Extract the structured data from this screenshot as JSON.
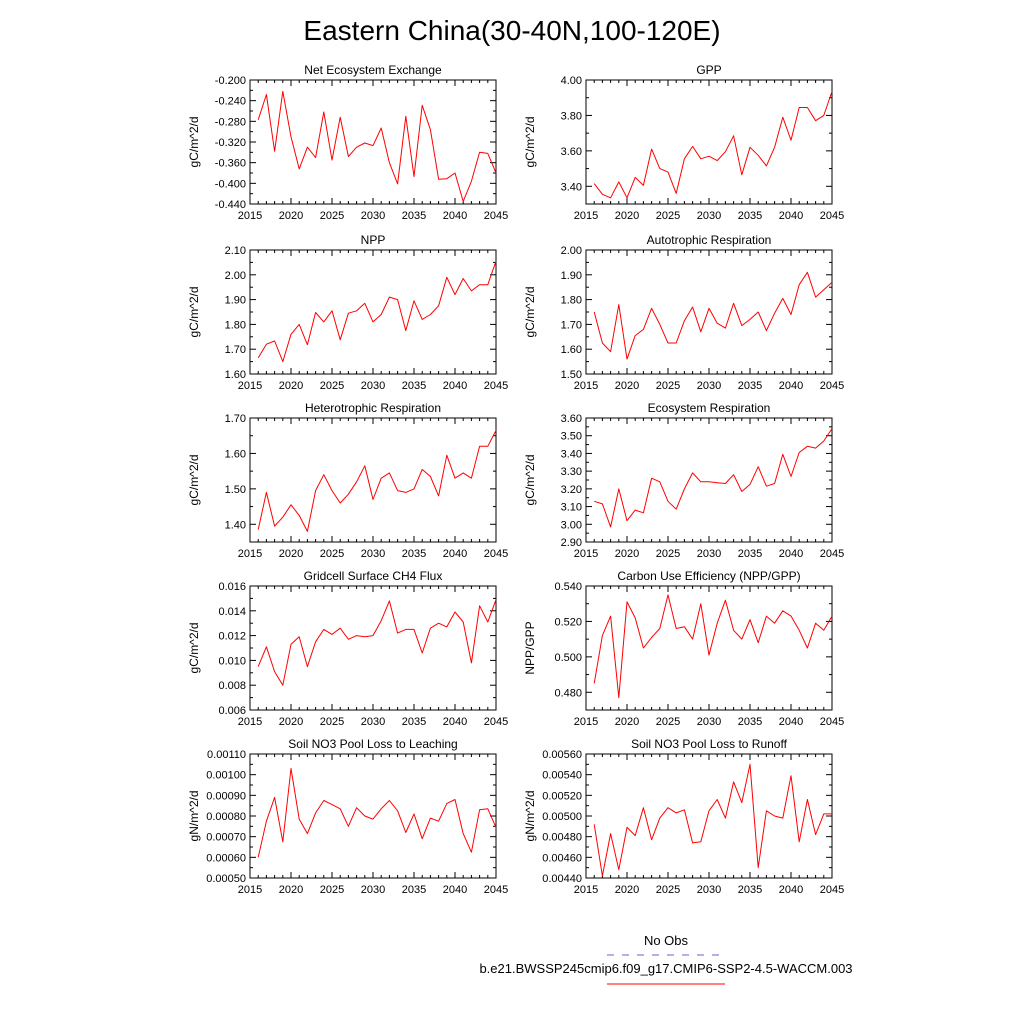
{
  "figure": {
    "title": "Eastern China(30-40N,100-120E)",
    "legend": {
      "obs_label": "No Obs",
      "obs_color": "#6666cc",
      "model_label": "b.e21.BWSSP245cmip6.f09_g17.CMIP6-SSP2-4.5-WACCM.003",
      "model_color": "#ff0000"
    }
  },
  "chart_data": [
    {
      "type": "line",
      "title": "Net Ecosystem Exchange",
      "xlabel": "",
      "ylabel": "gC/m^2/d",
      "xlim": [
        2015,
        2045
      ],
      "ylim": [
        -0.44,
        -0.2
      ],
      "xticks": [
        2015,
        2020,
        2025,
        2030,
        2035,
        2040,
        2045
      ],
      "yticks": [
        -0.44,
        -0.4,
        -0.36,
        -0.32,
        -0.28,
        -0.24,
        -0.2
      ],
      "ytick_decimals": 3,
      "x": [
        2016,
        2017,
        2018,
        2019,
        2020,
        2021,
        2022,
        2023,
        2024,
        2025,
        2026,
        2027,
        2028,
        2029,
        2030,
        2031,
        2032,
        2033,
        2034,
        2035,
        2036,
        2037,
        2038,
        2039,
        2040,
        2041,
        2042,
        2043,
        2044,
        2045
      ],
      "series": [
        {
          "values": [
            -0.277,
            -0.228,
            -0.338,
            -0.222,
            -0.31,
            -0.372,
            -0.33,
            -0.35,
            -0.262,
            -0.355,
            -0.272,
            -0.348,
            -0.33,
            -0.322,
            -0.327,
            -0.293,
            -0.36,
            -0.401,
            -0.27,
            -0.387,
            -0.249,
            -0.296,
            -0.392,
            -0.391,
            -0.38,
            -0.435,
            -0.396,
            -0.34,
            -0.342,
            -0.38
          ]
        }
      ]
    },
    {
      "type": "line",
      "title": "GPP",
      "xlabel": "",
      "ylabel": "gC/m^2/d",
      "xlim": [
        2015,
        2045
      ],
      "ylim": [
        3.3,
        4.0
      ],
      "xticks": [
        2015,
        2020,
        2025,
        2030,
        2035,
        2040,
        2045
      ],
      "yticks": [
        3.4,
        3.6,
        3.8,
        4.0
      ],
      "ytick_decimals": 2,
      "x": [
        2016,
        2017,
        2018,
        2019,
        2020,
        2021,
        2022,
        2023,
        2024,
        2025,
        2026,
        2027,
        2028,
        2029,
        2030,
        2031,
        2032,
        2033,
        2034,
        2035,
        2036,
        2037,
        2038,
        2039,
        2040,
        2041,
        2042,
        2043,
        2044,
        2045
      ],
      "series": [
        {
          "values": [
            3.415,
            3.355,
            3.335,
            3.425,
            3.335,
            3.45,
            3.405,
            3.61,
            3.5,
            3.48,
            3.36,
            3.555,
            3.625,
            3.555,
            3.57,
            3.545,
            3.595,
            3.685,
            3.465,
            3.62,
            3.575,
            3.515,
            3.62,
            3.79,
            3.66,
            3.845,
            3.845,
            3.77,
            3.8,
            3.935
          ]
        }
      ]
    },
    {
      "type": "line",
      "title": "NPP",
      "xlabel": "",
      "ylabel": "gC/m^2/d",
      "xlim": [
        2015,
        2045
      ],
      "ylim": [
        1.6,
        2.1
      ],
      "xticks": [
        2015,
        2020,
        2025,
        2030,
        2035,
        2040,
        2045
      ],
      "yticks": [
        1.6,
        1.7,
        1.8,
        1.9,
        2.0,
        2.1
      ],
      "ytick_decimals": 2,
      "x": [
        2016,
        2017,
        2018,
        2019,
        2020,
        2021,
        2022,
        2023,
        2024,
        2025,
        2026,
        2027,
        2028,
        2029,
        2030,
        2031,
        2032,
        2033,
        2034,
        2035,
        2036,
        2037,
        2038,
        2039,
        2040,
        2041,
        2042,
        2043,
        2044,
        2045
      ],
      "series": [
        {
          "values": [
            1.665,
            1.72,
            1.733,
            1.65,
            1.76,
            1.8,
            1.718,
            1.848,
            1.81,
            1.855,
            1.738,
            1.845,
            1.855,
            1.885,
            1.81,
            1.84,
            1.91,
            1.9,
            1.775,
            1.895,
            1.82,
            1.84,
            1.875,
            1.99,
            1.92,
            1.985,
            1.935,
            1.96,
            1.96,
            2.055
          ]
        }
      ]
    },
    {
      "type": "line",
      "title": "Autotrophic Respiration",
      "xlabel": "",
      "ylabel": "gC/m^2/d",
      "xlim": [
        2015,
        2045
      ],
      "ylim": [
        1.5,
        2.0
      ],
      "xticks": [
        2015,
        2020,
        2025,
        2030,
        2035,
        2040,
        2045
      ],
      "yticks": [
        1.5,
        1.6,
        1.7,
        1.8,
        1.9,
        2.0
      ],
      "ytick_decimals": 2,
      "x": [
        2016,
        2017,
        2018,
        2019,
        2020,
        2021,
        2022,
        2023,
        2024,
        2025,
        2026,
        2027,
        2028,
        2029,
        2030,
        2031,
        2032,
        2033,
        2034,
        2035,
        2036,
        2037,
        2038,
        2039,
        2040,
        2041,
        2042,
        2043,
        2044,
        2045
      ],
      "series": [
        {
          "values": [
            1.75,
            1.625,
            1.59,
            1.78,
            1.56,
            1.655,
            1.68,
            1.765,
            1.7,
            1.625,
            1.625,
            1.715,
            1.77,
            1.67,
            1.765,
            1.705,
            1.685,
            1.785,
            1.695,
            1.72,
            1.75,
            1.675,
            1.745,
            1.805,
            1.74,
            1.86,
            1.91,
            1.81,
            1.84,
            1.87
          ]
        }
      ]
    },
    {
      "type": "line",
      "title": "Heterotrophic Respiration",
      "xlabel": "",
      "ylabel": "gC/m^2/d",
      "xlim": [
        2015,
        2045
      ],
      "ylim": [
        1.35,
        1.7
      ],
      "xticks": [
        2015,
        2020,
        2025,
        2030,
        2035,
        2040,
        2045
      ],
      "yticks": [
        1.4,
        1.5,
        1.6,
        1.7
      ],
      "ytick_decimals": 2,
      "x": [
        2016,
        2017,
        2018,
        2019,
        2020,
        2021,
        2022,
        2023,
        2024,
        2025,
        2026,
        2027,
        2028,
        2029,
        2030,
        2031,
        2032,
        2033,
        2034,
        2035,
        2036,
        2037,
        2038,
        2039,
        2040,
        2041,
        2042,
        2043,
        2044,
        2045
      ],
      "series": [
        {
          "values": [
            1.385,
            1.49,
            1.395,
            1.42,
            1.455,
            1.425,
            1.38,
            1.495,
            1.54,
            1.495,
            1.46,
            1.485,
            1.52,
            1.565,
            1.47,
            1.53,
            1.545,
            1.495,
            1.49,
            1.5,
            1.555,
            1.535,
            1.48,
            1.595,
            1.53,
            1.545,
            1.53,
            1.62,
            1.62,
            1.665
          ]
        }
      ]
    },
    {
      "type": "line",
      "title": "Ecosystem Respiration",
      "xlabel": "",
      "ylabel": "gC/m^2/d",
      "xlim": [
        2015,
        2045
      ],
      "ylim": [
        2.9,
        3.6
      ],
      "xticks": [
        2015,
        2020,
        2025,
        2030,
        2035,
        2040,
        2045
      ],
      "yticks": [
        2.9,
        3.0,
        3.1,
        3.2,
        3.3,
        3.4,
        3.5,
        3.6
      ],
      "ytick_decimals": 2,
      "x": [
        2016,
        2017,
        2018,
        2019,
        2020,
        2021,
        2022,
        2023,
        2024,
        2025,
        2026,
        2027,
        2028,
        2029,
        2030,
        2031,
        2032,
        2033,
        2034,
        2035,
        2036,
        2037,
        2038,
        2039,
        2040,
        2041,
        2042,
        2043,
        2044,
        2045
      ],
      "series": [
        {
          "values": [
            3.13,
            3.115,
            2.985,
            3.2,
            3.02,
            3.08,
            3.065,
            3.26,
            3.24,
            3.13,
            3.085,
            3.2,
            3.29,
            3.24,
            3.24,
            3.235,
            3.23,
            3.28,
            3.185,
            3.225,
            3.325,
            3.215,
            3.23,
            3.395,
            3.27,
            3.405,
            3.44,
            3.43,
            3.47,
            3.54
          ]
        }
      ]
    },
    {
      "type": "line",
      "title": "Gridcell Surface CH4 Flux",
      "xlabel": "",
      "ylabel": "gC/m^2/d",
      "xlim": [
        2015,
        2045
      ],
      "ylim": [
        0.006,
        0.016
      ],
      "xticks": [
        2015,
        2020,
        2025,
        2030,
        2035,
        2040,
        2045
      ],
      "yticks": [
        0.006,
        0.008,
        0.01,
        0.012,
        0.014,
        0.016
      ],
      "ytick_decimals": 3,
      "x": [
        2016,
        2017,
        2018,
        2019,
        2020,
        2021,
        2022,
        2023,
        2024,
        2025,
        2026,
        2027,
        2028,
        2029,
        2030,
        2031,
        2032,
        2033,
        2034,
        2035,
        2036,
        2037,
        2038,
        2039,
        2040,
        2041,
        2042,
        2043,
        2044,
        2045
      ],
      "series": [
        {
          "values": [
            0.0095,
            0.0111,
            0.0091,
            0.008,
            0.0113,
            0.0119,
            0.0095,
            0.0115,
            0.0125,
            0.0121,
            0.0126,
            0.0117,
            0.012,
            0.0119,
            0.012,
            0.0132,
            0.0148,
            0.0122,
            0.0125,
            0.0125,
            0.0106,
            0.0126,
            0.013,
            0.0127,
            0.0139,
            0.0131,
            0.0098,
            0.0144,
            0.0131,
            0.0149
          ]
        }
      ]
    },
    {
      "type": "line",
      "title": "Carbon Use Efficiency (NPP/GPP)",
      "xlabel": "",
      "ylabel": "NPP/GPP",
      "xlim": [
        2015,
        2045
      ],
      "ylim": [
        0.47,
        0.54
      ],
      "xticks": [
        2015,
        2020,
        2025,
        2030,
        2035,
        2040,
        2045
      ],
      "yticks": [
        0.48,
        0.5,
        0.52,
        0.54
      ],
      "ytick_decimals": 3,
      "x": [
        2016,
        2017,
        2018,
        2019,
        2020,
        2021,
        2022,
        2023,
        2024,
        2025,
        2026,
        2027,
        2028,
        2029,
        2030,
        2031,
        2032,
        2033,
        2034,
        2035,
        2036,
        2037,
        2038,
        2039,
        2040,
        2041,
        2042,
        2043,
        2044,
        2045
      ],
      "series": [
        {
          "values": [
            0.485,
            0.512,
            0.523,
            0.477,
            0.531,
            0.522,
            0.505,
            0.511,
            0.516,
            0.535,
            0.516,
            0.517,
            0.51,
            0.53,
            0.501,
            0.519,
            0.532,
            0.515,
            0.51,
            0.521,
            0.508,
            0.523,
            0.519,
            0.526,
            0.523,
            0.515,
            0.505,
            0.519,
            0.515,
            0.523
          ]
        }
      ]
    },
    {
      "type": "line",
      "title": "Soil NO3 Pool Loss to Leaching",
      "xlabel": "",
      "ylabel": "gN/m^2/d",
      "xlim": [
        2015,
        2045
      ],
      "ylim": [
        0.0005,
        0.0011
      ],
      "xticks": [
        2015,
        2020,
        2025,
        2030,
        2035,
        2040,
        2045
      ],
      "yticks": [
        0.0005,
        0.0006,
        0.0007,
        0.0008,
        0.0009,
        0.001,
        0.0011
      ],
      "ytick_decimals": 5,
      "x": [
        2016,
        2017,
        2018,
        2019,
        2020,
        2021,
        2022,
        2023,
        2024,
        2025,
        2026,
        2027,
        2028,
        2029,
        2030,
        2031,
        2032,
        2033,
        2034,
        2035,
        2036,
        2037,
        2038,
        2039,
        2040,
        2041,
        2042,
        2043,
        2044,
        2045
      ],
      "series": [
        {
          "values": [
            0.0006,
            0.000775,
            0.00089,
            0.000675,
            0.00103,
            0.000785,
            0.000715,
            0.000815,
            0.000875,
            0.000855,
            0.000835,
            0.00075,
            0.00084,
            0.0008,
            0.000785,
            0.000835,
            0.000875,
            0.000825,
            0.00072,
            0.00081,
            0.00069,
            0.00079,
            0.000775,
            0.00086,
            0.00088,
            0.000715,
            0.000625,
            0.00083,
            0.000835,
            0.000745
          ]
        }
      ]
    },
    {
      "type": "line",
      "title": "Soil NO3 Pool Loss to Runoff",
      "xlabel": "",
      "ylabel": "gN/m^2/d",
      "xlim": [
        2015,
        2045
      ],
      "ylim": [
        0.0044,
        0.0056
      ],
      "xticks": [
        2015,
        2020,
        2025,
        2030,
        2035,
        2040,
        2045
      ],
      "yticks": [
        0.0044,
        0.0046,
        0.0048,
        0.005,
        0.0052,
        0.0054,
        0.0056
      ],
      "ytick_decimals": 5,
      "x": [
        2016,
        2017,
        2018,
        2019,
        2020,
        2021,
        2022,
        2023,
        2024,
        2025,
        2026,
        2027,
        2028,
        2029,
        2030,
        2031,
        2032,
        2033,
        2034,
        2035,
        2036,
        2037,
        2038,
        2039,
        2040,
        2041,
        2042,
        2043,
        2044,
        2045
      ],
      "series": [
        {
          "values": [
            0.00492,
            0.00442,
            0.00483,
            0.00448,
            0.00489,
            0.00481,
            0.00508,
            0.00477,
            0.00498,
            0.00508,
            0.00503,
            0.00506,
            0.00474,
            0.00475,
            0.00505,
            0.00516,
            0.00498,
            0.00533,
            0.00513,
            0.0055,
            0.0045,
            0.00505,
            0.005,
            0.00498,
            0.00539,
            0.00475,
            0.00516,
            0.00482,
            0.00502,
            0.00502
          ]
        }
      ]
    }
  ]
}
